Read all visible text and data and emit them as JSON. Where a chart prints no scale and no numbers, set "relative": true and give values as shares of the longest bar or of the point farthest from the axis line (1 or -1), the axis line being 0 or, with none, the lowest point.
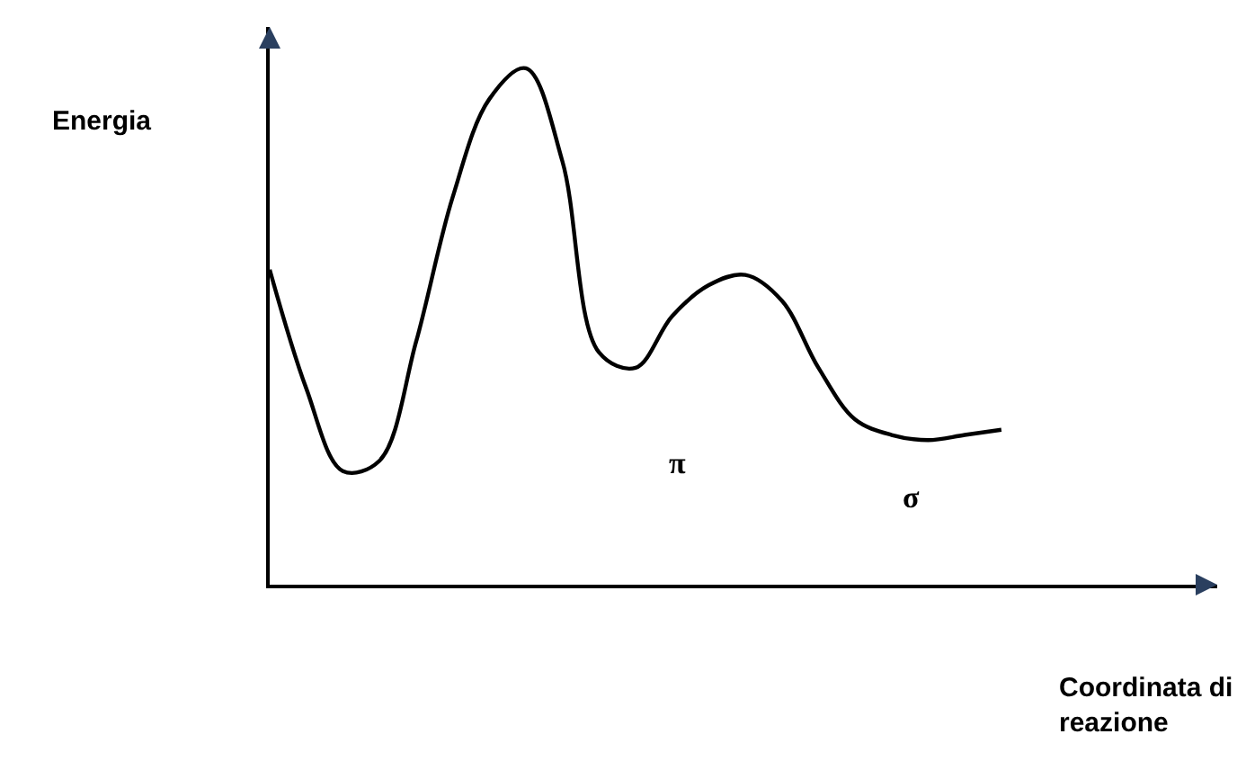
{
  "chart_data": {
    "type": "line",
    "relative": true,
    "xlabel": "Coordinata di\nreazione",
    "ylabel": "Energia",
    "categories": [
      null,
      null,
      null,
      null,
      null,
      null,
      null,
      null,
      null,
      null,
      null,
      null,
      null,
      null,
      null,
      null,
      null,
      null,
      null,
      null,
      null
    ],
    "series": [
      {
        "color": "#000000",
        "values": [
          0.61,
          0.38,
          0.22,
          0.24,
          0.47,
          0.75,
          0.94,
          1.0,
          0.82,
          0.45,
          0.42,
          0.52,
          0.58,
          0.6,
          0.55,
          0.42,
          0.32,
          0.29,
          0.28,
          0.29,
          0.3
        ]
      }
    ],
    "annotations": [
      "π",
      "σ"
    ],
    "line_style": "solid",
    "legend": false
  }
}
